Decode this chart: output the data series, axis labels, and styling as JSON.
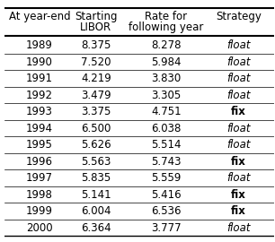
{
  "col_headers_line1": [
    "At year-end",
    "Starting",
    "Rate for",
    "Strategy"
  ],
  "col_headers_line2": [
    "",
    "LIBOR",
    "following year",
    ""
  ],
  "rows": [
    [
      "1989",
      "8.375",
      "8.278",
      "float"
    ],
    [
      "1990",
      "7.520",
      "5.984",
      "float"
    ],
    [
      "1991",
      "4.219",
      "3.830",
      "float"
    ],
    [
      "1992",
      "3.479",
      "3.305",
      "float"
    ],
    [
      "1993",
      "3.375",
      "4.751",
      "fix"
    ],
    [
      "1994",
      "6.500",
      "6.038",
      "float"
    ],
    [
      "1995",
      "5.626",
      "5.514",
      "float"
    ],
    [
      "1996",
      "5.563",
      "5.743",
      "fix"
    ],
    [
      "1997",
      "5.835",
      "5.559",
      "float"
    ],
    [
      "1998",
      "5.141",
      "5.416",
      "fix"
    ],
    [
      "1999",
      "6.004",
      "6.536",
      "fix"
    ],
    [
      "2000",
      "6.364",
      "3.777",
      "float"
    ]
  ],
  "fix_rows": [
    4,
    7,
    9,
    10
  ],
  "background_color": "#ffffff",
  "text_color": "#000000",
  "font_size": 8.5
}
